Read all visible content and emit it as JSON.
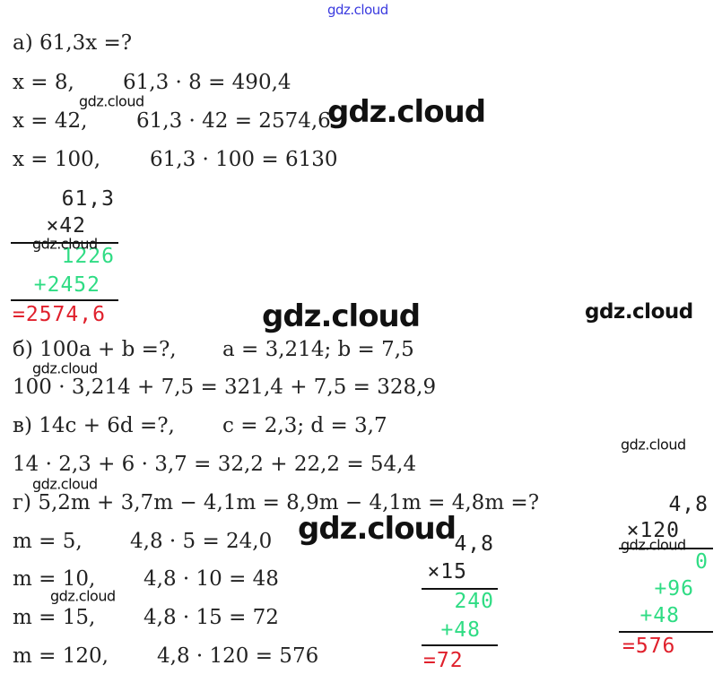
{
  "colors": {
    "green": "#2fdc84",
    "red": "#e0202c",
    "text": "#222222"
  },
  "watermark": "gdz.cloud",
  "lines": [
    {
      "l": "а) 61,3x =?",
      "r": ""
    },
    {
      "l": "x = 8,",
      "r": "61,3 · 8 = 490,4"
    },
    {
      "l": "x = 42,",
      "r": "61,3 · 42 = 2574,6"
    },
    {
      "l": "x = 100,",
      "r": "61,3 · 100 = 6130"
    },
    {
      "l": "б) 100a + b =?,",
      "r": "a = 3,214; b = 7,5"
    },
    {
      "l": "100 · 3,214 + 7,5 = 321,4 + 7,5 = 328,9",
      "r": ""
    },
    {
      "l": "в) 14c + 6d =?,",
      "r": "c = 2,3; d = 3,7"
    },
    {
      "l": "14 · 2,3 + 6 · 3,7 = 32,2 + 22,2 = 54,4",
      "r": ""
    },
    {
      "l": "г) 5,2m + 3,7m − 4,1m = 8,9m − 4,1m = 4,8m =?",
      "r": ""
    },
    {
      "l": "m = 5,",
      "r": "4,8 · 5 = 24,0"
    },
    {
      "l": "m = 10,",
      "r": "4,8 · 10 = 48"
    },
    {
      "l": "m = 15,",
      "r": "4,8 · 15 = 72"
    },
    {
      "l": "m = 120,",
      "r": "4,8 · 120 = 576"
    }
  ],
  "columns": [
    {
      "rows": [
        {
          "t": "61,3",
          "c": "text"
        },
        {
          "t": "×42",
          "c": "text"
        },
        {
          "t": "1226",
          "c": "green"
        },
        {
          "t": "+2452",
          "c": "green"
        },
        {
          "t": "=2574,6",
          "c": "red"
        }
      ]
    },
    {
      "rows": [
        {
          "t": "4,8",
          "c": "text"
        },
        {
          "t": "×15",
          "c": "text"
        },
        {
          "t": "240",
          "c": "green"
        },
        {
          "t": "+48",
          "c": "green"
        },
        {
          "t": "=72",
          "c": "red"
        }
      ]
    },
    {
      "rows": [
        {
          "t": "4,8",
          "c": "text"
        },
        {
          "t": "×120",
          "c": "text"
        },
        {
          "t": "0",
          "c": "green"
        },
        {
          "t": "+96",
          "c": "green"
        },
        {
          "t": "+48",
          "c": "green"
        },
        {
          "t": "=576",
          "c": "red"
        }
      ]
    }
  ]
}
